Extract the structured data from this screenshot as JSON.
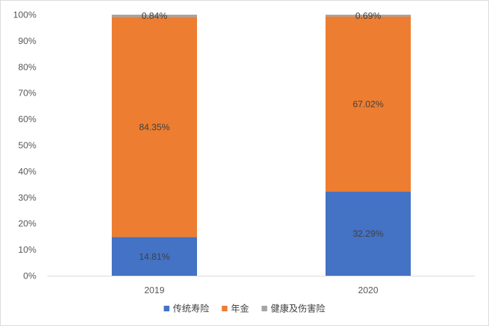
{
  "chart_data": {
    "type": "bar",
    "stacked": true,
    "categories": [
      "2019",
      "2020"
    ],
    "series": [
      {
        "name": "传统寿险",
        "values": [
          14.81,
          32.29
        ],
        "labels": [
          "14.81%",
          "32.29%"
        ],
        "color": "#4472c4"
      },
      {
        "name": "年金",
        "values": [
          84.35,
          67.02
        ],
        "labels": [
          "84.35%",
          "67.02%"
        ],
        "color": "#ed7d31"
      },
      {
        "name": "健康及伤害险",
        "values": [
          0.84,
          0.69
        ],
        "labels": [
          "0.84%",
          "0.69%"
        ],
        "color": "#a5a5a5"
      }
    ],
    "ylim": [
      0,
      100
    ],
    "yticks": [
      "0%",
      "10%",
      "20%",
      "30%",
      "40%",
      "50%",
      "60%",
      "70%",
      "80%",
      "90%",
      "100%"
    ],
    "grid": false,
    "legend_position": "bottom"
  }
}
